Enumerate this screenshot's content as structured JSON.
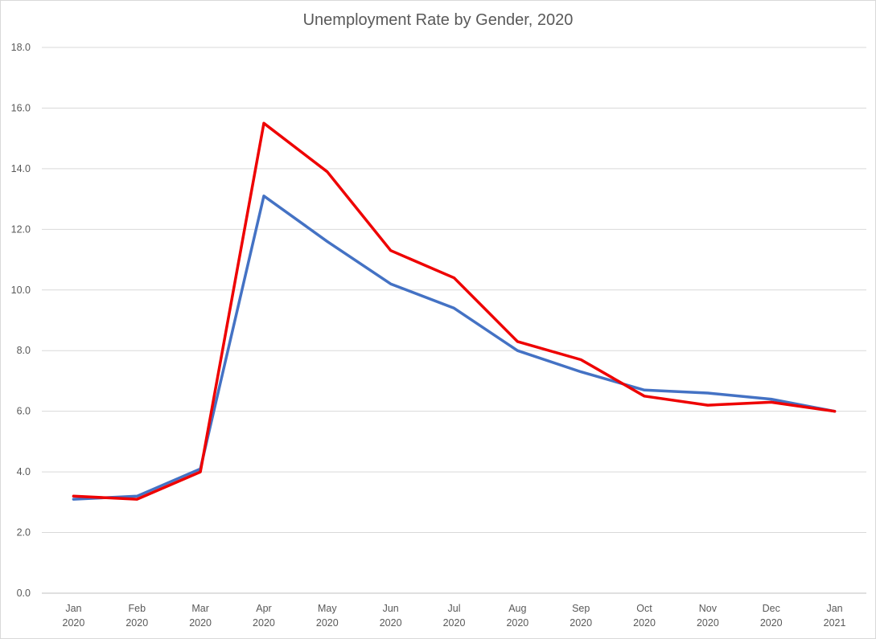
{
  "chart_data": {
    "type": "line",
    "title": "Unemployment Rate by Gender, 2020",
    "xlabel": "",
    "ylabel": "",
    "ylim": [
      0,
      18
    ],
    "y_ticks": [
      "0.0",
      "2.0",
      "4.0",
      "6.0",
      "8.0",
      "10.0",
      "12.0",
      "14.0",
      "16.0",
      "18.0"
    ],
    "categories": [
      [
        "Jan",
        "2020"
      ],
      [
        "Feb",
        "2020"
      ],
      [
        "Mar",
        "2020"
      ],
      [
        "Apr",
        "2020"
      ],
      [
        "May",
        "2020"
      ],
      [
        "Jun",
        "2020"
      ],
      [
        "Jul",
        "2020"
      ],
      [
        "Aug",
        "2020"
      ],
      [
        "Sep",
        "2020"
      ],
      [
        "Oct",
        "2020"
      ],
      [
        "Nov",
        "2020"
      ],
      [
        "Dec",
        "2020"
      ],
      [
        "Jan",
        "2021"
      ]
    ],
    "series": [
      {
        "color": "#4472c4",
        "values": [
          3.1,
          3.2,
          4.1,
          13.1,
          11.6,
          10.2,
          9.4,
          8.0,
          7.3,
          6.7,
          6.6,
          6.4,
          6.0
        ]
      },
      {
        "color": "#ee0000",
        "values": [
          3.2,
          3.1,
          4.0,
          15.5,
          13.9,
          11.3,
          10.4,
          8.3,
          7.7,
          6.5,
          6.2,
          6.3,
          6.0
        ]
      }
    ],
    "grid": true,
    "legend": "none"
  }
}
